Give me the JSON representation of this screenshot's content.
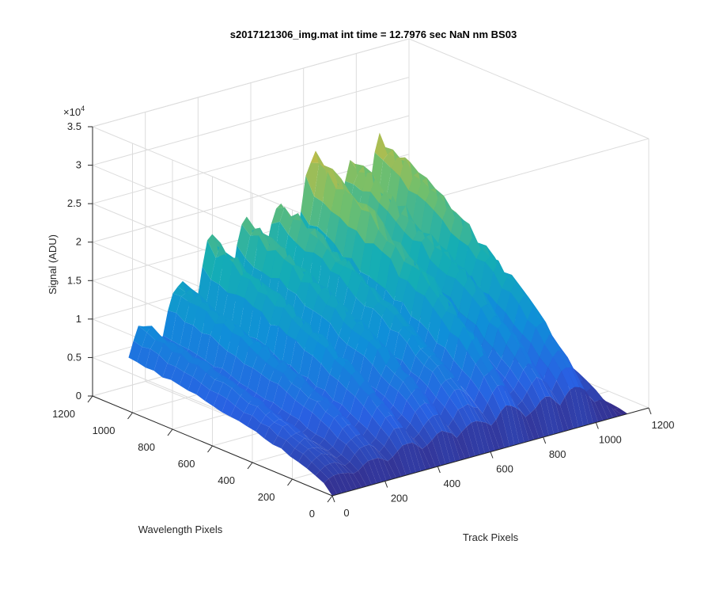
{
  "chart_data": {
    "type": "surface",
    "title": "s2017121306_img.mat int time = 12.7976 sec  NaN nm BS03",
    "xlabel": "Track Pixels",
    "ylabel": "Wavelength Pixels",
    "zlabel": "Signal (ADU)",
    "x_ticks": [
      "0",
      "200",
      "400",
      "600",
      "800",
      "1000",
      "1200"
    ],
    "y_ticks": [
      "0",
      "200",
      "400",
      "600",
      "800",
      "1000",
      "1200"
    ],
    "z_ticks": [
      "0",
      "0.5",
      "1",
      "1.5",
      "2",
      "2.5",
      "3",
      "3.5"
    ],
    "z_exponent_base": "×10",
    "z_exponent_power": "4",
    "xlim": [
      0,
      1200
    ],
    "ylim": [
      0,
      1200
    ],
    "zlim": [
      0,
      35000
    ],
    "colormap": "parula",
    "grid": true,
    "peak_profile_along_track": {
      "track_pixels": [
        0,
        80,
        160,
        230,
        300,
        380,
        460,
        530,
        590,
        650,
        720,
        800,
        860,
        920,
        990,
        1050,
        1100
      ],
      "peak_signal": [
        12000,
        12500,
        16500,
        18000,
        22000,
        22000,
        24000,
        26500,
        24000,
        31000,
        30000,
        25000,
        30000,
        33000,
        28000,
        18000,
        2000
      ]
    }
  }
}
